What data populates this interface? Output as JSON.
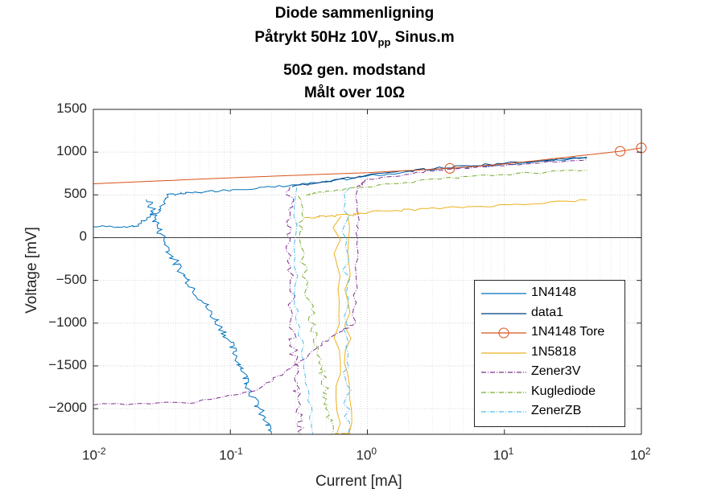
{
  "title": {
    "line1": "Diode sammenligning",
    "line2_main": "Påtrykt 50Hz 10V",
    "line2_sub": "pp",
    "line2_tail": " Sinus.m",
    "line3": "50Ω gen. modstand",
    "line4": "Målt over 10Ω"
  },
  "chart_data": {
    "type": "line",
    "xscale": "log",
    "xlim": [
      0.01,
      100
    ],
    "ylim": [
      -2300,
      1500
    ],
    "xlabel": "Current [mA]",
    "ylabel": "Voltage [mV]",
    "grid": true,
    "legend_position": "bottom-right",
    "x_ticks": [
      {
        "value": 0.01,
        "base": "10",
        "exp": "-2"
      },
      {
        "value": 0.1,
        "base": "10",
        "exp": "-1"
      },
      {
        "value": 1,
        "base": "10",
        "exp": "0"
      },
      {
        "value": 10,
        "base": "10",
        "exp": "1"
      },
      {
        "value": 100,
        "base": "10",
        "exp": "2"
      }
    ],
    "y_ticks": [
      {
        "value": 1500,
        "label": "1500"
      },
      {
        "value": 1000,
        "label": "1000"
      },
      {
        "value": 500,
        "label": "500"
      },
      {
        "value": 0,
        "label": "0"
      },
      {
        "value": -500,
        "label": "−500"
      },
      {
        "value": -1000,
        "label": "−1000"
      },
      {
        "value": -1500,
        "label": "−1500"
      },
      {
        "value": -2000,
        "label": "−2000"
      }
    ],
    "series": [
      {
        "name": "1N4148",
        "color": "#0072BD",
        "style": "solid",
        "points": [
          [
            0.01,
            130
          ],
          [
            0.02,
            130
          ],
          [
            0.03,
            300
          ],
          [
            0.035,
            500
          ],
          [
            0.05,
            520
          ],
          [
            0.1,
            560
          ],
          [
            0.2,
            590
          ],
          [
            0.5,
            650
          ],
          [
            1,
            720
          ],
          [
            3,
            800
          ],
          [
            10,
            860
          ],
          [
            40,
            930
          ]
        ],
        "branch": [
          [
            0.025,
            450
          ],
          [
            0.03,
            100
          ],
          [
            0.04,
            -300
          ],
          [
            0.06,
            -700
          ],
          [
            0.09,
            -1100
          ],
          [
            0.12,
            -1500
          ],
          [
            0.15,
            -1900
          ],
          [
            0.2,
            -2300
          ]
        ]
      },
      {
        "name": "data1",
        "color": "#003F7F",
        "style": "solid",
        "points": [
          [
            0.28,
            600
          ],
          [
            0.5,
            660
          ],
          [
            1,
            730
          ],
          [
            3,
            810
          ],
          [
            10,
            870
          ],
          [
            40,
            940
          ]
        ]
      },
      {
        "name": "1N4148 Tore",
        "color": "#D95319",
        "style": "solid-marker",
        "points": [
          [
            0.01,
            630
          ],
          [
            0.1,
            700
          ],
          [
            1,
            760
          ],
          [
            4,
            810
          ],
          [
            10,
            860
          ],
          [
            70,
            1010
          ],
          [
            100,
            1050
          ]
        ],
        "markers": [
          [
            4,
            810
          ],
          [
            70,
            1010
          ],
          [
            100,
            1050
          ]
        ]
      },
      {
        "name": "1N5818",
        "color": "#EDB120",
        "style": "solid",
        "points": [
          [
            0.35,
            230
          ],
          [
            0.5,
            250
          ],
          [
            0.8,
            270
          ],
          [
            1,
            300
          ],
          [
            3,
            340
          ],
          [
            10,
            380
          ],
          [
            40,
            440
          ]
        ],
        "branch": [
          [
            0.6,
            250
          ],
          [
            0.6,
            -2300
          ],
          [
            0.72,
            -2300
          ],
          [
            0.72,
            250
          ]
        ]
      },
      {
        "name": "Zener3V",
        "color": "#7E2F8E",
        "style": "dashdot",
        "points": [
          [
            0.01,
            -1950
          ],
          [
            0.05,
            -1930
          ],
          [
            0.15,
            -1800
          ],
          [
            0.3,
            -1500
          ],
          [
            0.5,
            -1200
          ],
          [
            0.8,
            -1000
          ],
          [
            0.85,
            0
          ],
          [
            0.85,
            600
          ],
          [
            1,
            680
          ],
          [
            3,
            780
          ],
          [
            10,
            850
          ],
          [
            40,
            910
          ]
        ],
        "branch": [
          [
            0.27,
            600
          ],
          [
            0.27,
            0
          ],
          [
            0.28,
            -1000
          ],
          [
            0.3,
            -1700
          ],
          [
            0.33,
            -2300
          ]
        ]
      },
      {
        "name": "Kuglediode",
        "color": "#77AC30",
        "style": "dashdot",
        "points": [
          [
            0.35,
            500
          ],
          [
            0.5,
            540
          ],
          [
            1,
            600
          ],
          [
            3,
            680
          ],
          [
            10,
            740
          ],
          [
            40,
            790
          ]
        ],
        "branch": [
          [
            0.32,
            500
          ],
          [
            0.35,
            -500
          ],
          [
            0.42,
            -1200
          ],
          [
            0.5,
            -1800
          ],
          [
            0.55,
            -2300
          ]
        ]
      },
      {
        "name": "ZenerZB",
        "color": "#4DBEEE",
        "style": "dashdot",
        "points": [
          [
            0.3,
            600
          ],
          [
            0.3,
            -800
          ],
          [
            0.35,
            -1500
          ],
          [
            0.4,
            -2300
          ]
        ],
        "branch": [
          [
            0.7,
            600
          ],
          [
            0.7,
            -1000
          ],
          [
            0.72,
            -2300
          ]
        ]
      }
    ]
  }
}
